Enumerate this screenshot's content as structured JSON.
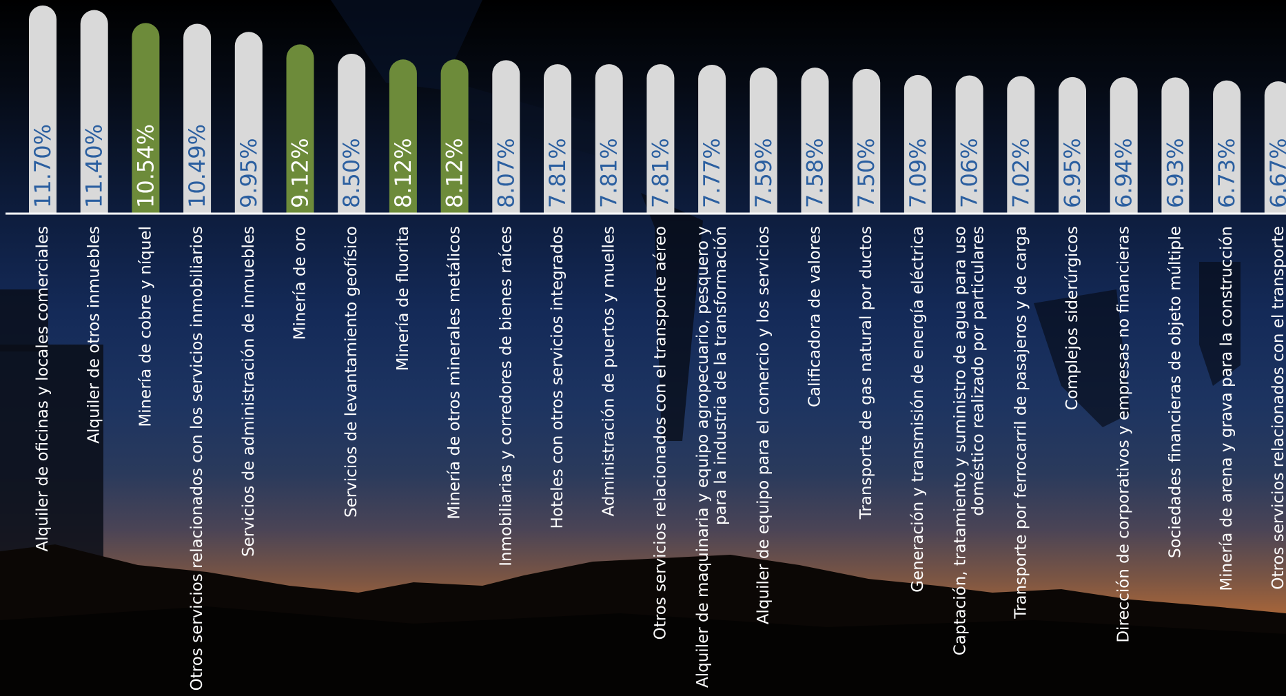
{
  "chart_data": {
    "type": "bar",
    "orientation": "vertical",
    "title": "",
    "xlabel": "",
    "ylabel": "",
    "grid": false,
    "categories": [
      [
        "Alquiler de oficinas y locales comerciales"
      ],
      [
        "Alquiler de otros inmuebles"
      ],
      [
        "Minería de cobre y níquel"
      ],
      [
        "Otros servicios relacionados con los servicios inmobiliarios"
      ],
      [
        "Servicios de administración de inmuebles"
      ],
      [
        "Minería de oro"
      ],
      [
        "Servicios de levantamiento geofísico"
      ],
      [
        "Minería de fluorita"
      ],
      [
        "Minería de otros minerales metálicos"
      ],
      [
        "Inmobiliarias y corredores de bienes raíces"
      ],
      [
        "Hoteles con otros servicios integrados"
      ],
      [
        "Administración de puertos y muelles"
      ],
      [
        "Otros servicios relacionados con el transporte aéreo"
      ],
      [
        "Alquiler de maquinaria y equipo agropecuario, pesquero y",
        "para la industria de la transformación"
      ],
      [
        "Alquiler de equipo para el comercio y los servicios"
      ],
      [
        "Calificadora de valores"
      ],
      [
        "Transporte de gas natural por ductos"
      ],
      [
        "Generación y transmisión de energía eléctrica"
      ],
      [
        "Captación, tratamiento y suministro de agua para uso",
        "doméstico realizado por particulares"
      ],
      [
        "Transporte por ferrocarril de pasajeros y de carga"
      ],
      [
        "Complejos siderúrgicos"
      ],
      [
        "Dirección de corporativos y empresas no financieras"
      ],
      [
        "Sociedades financieras de objeto múltiple"
      ],
      [
        "Minería de arena y grava para la construcción"
      ],
      [
        "Otros servicios relacionados con el transporte"
      ]
    ],
    "values": [
      11.7,
      11.4,
      10.54,
      10.49,
      9.95,
      9.12,
      8.5,
      8.12,
      8.12,
      8.07,
      7.81,
      7.81,
      7.81,
      7.77,
      7.59,
      7.58,
      7.5,
      7.09,
      7.06,
      7.02,
      6.95,
      6.94,
      6.93,
      6.73,
      6.67
    ],
    "value_labels": [
      "11.70%",
      "11.40%",
      "10.54%",
      "10.49%",
      "9.95%",
      "9.12%",
      "8.50%",
      "8.12%",
      "8.12%",
      "8.07%",
      "7.81%",
      "7.81%",
      "7.81%",
      "7.77%",
      "7.59%",
      "7.58%",
      "7.50%",
      "7.09%",
      "7.06%",
      "7.02%",
      "6.95%",
      "6.94%",
      "6.93%",
      "6.73%",
      "6.67%"
    ],
    "highlight": [
      false,
      false,
      true,
      false,
      false,
      true,
      false,
      true,
      true,
      false,
      false,
      false,
      false,
      false,
      false,
      false,
      false,
      false,
      false,
      false,
      false,
      false,
      false,
      false,
      false
    ],
    "colors": {
      "bar_default": "#d9d9d9",
      "bar_highlight": "#6d8b3a",
      "value_text_default": "#2b5fa0",
      "value_text_highlight": "#ffffff",
      "baseline": "#ffffff",
      "category_text": "#ffffff"
    }
  }
}
